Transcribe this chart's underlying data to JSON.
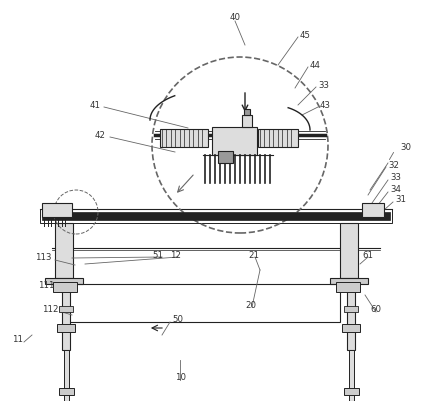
{
  "bg_color": "#ffffff",
  "lc": "#666666",
  "dc": "#222222",
  "gray1": "#cccccc",
  "gray2": "#dddddd",
  "gray3": "#999999"
}
